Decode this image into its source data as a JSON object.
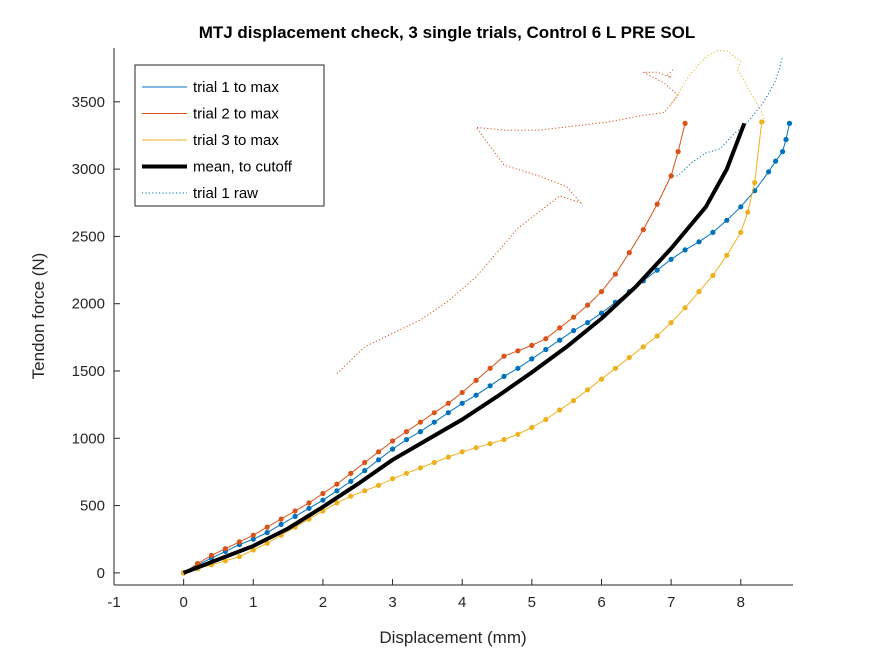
{
  "chart_data": {
    "type": "line",
    "title": "MTJ displacement check, 3 single trials, Control 6 L PRE SOL",
    "xlabel": "Displacement (mm)",
    "ylabel": "Tendon force (N)",
    "xlim": [
      -1,
      8.75
    ],
    "ylim": [
      -90,
      3900
    ],
    "xticks": [
      -1,
      0,
      1,
      2,
      3,
      4,
      5,
      6,
      7,
      8
    ],
    "yticks": [
      0,
      500,
      1000,
      1500,
      2000,
      2500,
      3000,
      3500
    ],
    "grid": false,
    "legend_position": "top-left",
    "colors": {
      "trial1": "#0072BD",
      "trial2": "#D95319",
      "trial3": "#EDB120",
      "mean": "#000000"
    },
    "series": [
      {
        "name": "trial 1 to max",
        "key": "trial1",
        "style": "solid-markers",
        "x": [
          0,
          0.2,
          0.4,
          0.6,
          0.8,
          1.0,
          1.2,
          1.4,
          1.6,
          1.8,
          2.0,
          2.2,
          2.4,
          2.6,
          2.8,
          3.0,
          3.2,
          3.4,
          3.6,
          3.8,
          4.0,
          4.2,
          4.4,
          4.6,
          4.8,
          5.0,
          5.2,
          5.4,
          5.6,
          5.8,
          6.0,
          6.2,
          6.4,
          6.6,
          6.8,
          7.0,
          7.2,
          7.4,
          7.6,
          7.8,
          8.0,
          8.2,
          8.4,
          8.5,
          8.6,
          8.65,
          8.7
        ],
        "y": [
          0,
          60,
          110,
          160,
          210,
          250,
          300,
          360,
          420,
          480,
          540,
          610,
          680,
          760,
          840,
          920,
          990,
          1050,
          1120,
          1190,
          1260,
          1320,
          1390,
          1460,
          1520,
          1590,
          1660,
          1730,
          1800,
          1860,
          1930,
          2010,
          2090,
          2170,
          2250,
          2330,
          2400,
          2460,
          2530,
          2620,
          2720,
          2840,
          2980,
          3060,
          3130,
          3220,
          3340
        ]
      },
      {
        "name": "trial 2 to max",
        "key": "trial2",
        "style": "solid-markers",
        "x": [
          0,
          0.2,
          0.4,
          0.6,
          0.8,
          1.0,
          1.2,
          1.4,
          1.6,
          1.8,
          2.0,
          2.2,
          2.4,
          2.6,
          2.8,
          3.0,
          3.2,
          3.4,
          3.6,
          3.8,
          4.0,
          4.2,
          4.4,
          4.6,
          4.8,
          5.0,
          5.2,
          5.4,
          5.6,
          5.8,
          6.0,
          6.2,
          6.4,
          6.6,
          6.8,
          7.0,
          7.1,
          7.2
        ],
        "y": [
          0,
          70,
          130,
          180,
          230,
          280,
          340,
          400,
          460,
          520,
          590,
          660,
          740,
          820,
          900,
          980,
          1050,
          1120,
          1190,
          1260,
          1340,
          1430,
          1520,
          1610,
          1650,
          1690,
          1740,
          1820,
          1900,
          1990,
          2090,
          2220,
          2380,
          2550,
          2740,
          2950,
          3130,
          3340
        ]
      },
      {
        "name": "trial 3 to max",
        "key": "trial3",
        "style": "solid-markers",
        "x": [
          0,
          0.2,
          0.4,
          0.6,
          0.8,
          1.0,
          1.2,
          1.4,
          1.6,
          1.8,
          2.0,
          2.2,
          2.4,
          2.6,
          2.8,
          3.0,
          3.2,
          3.4,
          3.6,
          3.8,
          4.0,
          4.2,
          4.4,
          4.6,
          4.8,
          5.0,
          5.2,
          5.4,
          5.6,
          5.8,
          6.0,
          6.2,
          6.4,
          6.6,
          6.8,
          7.0,
          7.2,
          7.4,
          7.6,
          7.8,
          8.0,
          8.1,
          8.2,
          8.3
        ],
        "y": [
          0,
          30,
          60,
          90,
          120,
          170,
          220,
          280,
          340,
          400,
          460,
          520,
          570,
          610,
          650,
          700,
          740,
          780,
          820,
          860,
          900,
          930,
          960,
          990,
          1030,
          1080,
          1140,
          1210,
          1280,
          1360,
          1440,
          1520,
          1600,
          1680,
          1760,
          1860,
          1970,
          2090,
          2210,
          2360,
          2530,
          2680,
          2900,
          3350
        ]
      },
      {
        "name": "mean, to cutoff",
        "key": "mean",
        "style": "thick",
        "x": [
          0,
          0.5,
          1.0,
          1.5,
          2.0,
          2.5,
          3.0,
          3.5,
          4.0,
          4.5,
          5.0,
          5.5,
          6.0,
          6.5,
          7.0,
          7.5,
          7.8,
          8.05
        ],
        "y": [
          0,
          100,
          200,
          330,
          490,
          660,
          840,
          990,
          1140,
          1310,
          1490,
          1680,
          1890,
          2130,
          2410,
          2720,
          3000,
          3340
        ]
      },
      {
        "name": "trial 1 raw",
        "key": "trial1",
        "style": "dotted",
        "x": [
          6.9,
          7.0,
          7.1,
          7.3,
          7.5,
          7.7,
          7.9,
          8.1,
          8.3,
          8.4,
          8.5,
          8.55,
          8.6
        ],
        "y": [
          2850,
          2950,
          2950,
          3050,
          3120,
          3150,
          3260,
          3350,
          3480,
          3560,
          3660,
          3740,
          3840
        ]
      },
      {
        "name": "",
        "key": "trial2",
        "style": "dotted",
        "x": [
          2.2,
          2.4,
          2.6,
          3.0,
          3.4,
          3.8,
          4.2,
          4.4,
          4.6,
          4.8,
          5.1,
          5.4,
          5.7,
          5.5,
          5.1,
          4.6,
          4.2,
          4.6,
          5.1,
          5.6,
          6.1,
          6.6,
          6.9,
          7.1,
          6.9,
          6.6,
          6.8,
          7.0,
          6.95,
          7.05
        ],
        "y": [
          1480,
          1580,
          1680,
          1780,
          1880,
          2020,
          2200,
          2320,
          2440,
          2560,
          2680,
          2800,
          2750,
          2870,
          2950,
          3030,
          3310,
          3290,
          3290,
          3320,
          3350,
          3400,
          3420,
          3550,
          3640,
          3720,
          3720,
          3680,
          3700,
          3750
        ]
      },
      {
        "name": "",
        "key": "trial3",
        "style": "dotted",
        "x": [
          7.0,
          7.1,
          7.2,
          7.35,
          7.5,
          7.65,
          7.8,
          7.9,
          8.0,
          7.95,
          8.05,
          8.1,
          8.2,
          8.3,
          8.35
        ],
        "y": [
          3480,
          3560,
          3650,
          3750,
          3830,
          3880,
          3880,
          3840,
          3800,
          3740,
          3660,
          3600,
          3520,
          3420,
          3350
        ]
      }
    ]
  },
  "legend": [
    {
      "label": "trial 1 to max",
      "color": "#0072BD",
      "style": "thin"
    },
    {
      "label": "trial 2 to max",
      "color": "#D95319",
      "style": "thin"
    },
    {
      "label": "trial 3 to max",
      "color": "#EDB120",
      "style": "thin"
    },
    {
      "label": "mean, to cutoff",
      "color": "#000000",
      "style": "thick"
    },
    {
      "label": "trial 1 raw",
      "color": "#0072BD",
      "style": "dotted"
    }
  ]
}
